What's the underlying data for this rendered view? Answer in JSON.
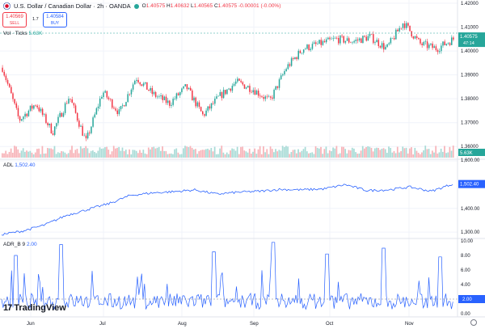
{
  "header": {
    "symbol_title": "U.S. Dollar / Canadian Dollar · 2h · OANDA",
    "ohlc": {
      "o_label": "O",
      "o_value": "1.40575",
      "h_label": "H",
      "h_value": "1.40632",
      "l_label": "L",
      "l_value": "1.40565",
      "c_label": "C",
      "c_value": "1.40575",
      "change": "-0.00001 (-0.00%)"
    },
    "sell_price": "1.40569",
    "sell_label": "SELL",
    "buy_price": "1.40584",
    "buy_label": "BUY",
    "spread": "1.7",
    "volume_label": "Vol · Ticks",
    "volume_value": "5.63K"
  },
  "price_axis": {
    "ticks": [
      "1.42000",
      "1.41000",
      "1.40000",
      "1.39000",
      "1.38000",
      "1.37000",
      "1.36000"
    ],
    "current_price": "1.40575",
    "countdown": "47:14",
    "volume_badge": "5.63K",
    "last_visible": "1,600.00"
  },
  "adl_panel": {
    "label": "ADL",
    "value": "1,502.40",
    "axis_ticks": [
      "1,600.00",
      "1,400.00",
      "1,300.00"
    ],
    "badge": "1,502.40"
  },
  "adr_panel": {
    "label": "ADR_B",
    "param": "9",
    "value": "2.00",
    "axis_ticks": [
      "10.00",
      "8.00",
      "6.00",
      "4.00",
      "0.00"
    ],
    "badge": "2.00"
  },
  "time_axis": {
    "labels": [
      "Jun",
      "Jul",
      "Aug",
      "Sep",
      "Oct",
      "Nov"
    ]
  },
  "branding": {
    "logo_text": "TradingView"
  },
  "colors": {
    "up": "#26a69a",
    "down": "#f23645",
    "line": "#2962ff",
    "grid": "#f0f3fa",
    "current_price": "#26a69a"
  },
  "chart_data": [
    {
      "type": "candlestick",
      "series_name": "USDCAD 2h",
      "x": [
        "Jun",
        "Jul",
        "Aug",
        "Sep",
        "Oct",
        "Nov"
      ],
      "close_path": [
        1.393,
        1.371,
        1.378,
        1.366,
        1.381,
        1.362,
        1.383,
        1.374,
        1.389,
        1.382,
        1.378,
        1.385,
        1.373,
        1.381,
        1.387,
        1.384,
        1.379,
        1.393,
        1.401,
        1.403,
        1.405,
        1.404,
        1.406,
        1.401,
        1.412,
        1.403,
        1.401,
        1.405
      ],
      "ylim": [
        1.355,
        1.42
      ],
      "grid": true
    },
    {
      "type": "area",
      "series_name": "Vol · Ticks",
      "last_value": "5.63K"
    },
    {
      "type": "line",
      "series_name": "ADL",
      "values": [
        1290,
        1305,
        1330,
        1370,
        1395,
        1420,
        1455,
        1465,
        1470,
        1478,
        1460,
        1468,
        1472,
        1480,
        1478,
        1482,
        1500,
        1475,
        1478,
        1490,
        1472,
        1503
      ],
      "ylim": [
        1280,
        1600
      ],
      "last_value": 1502.4
    },
    {
      "type": "line",
      "series_name": "ADR_B",
      "params": "9",
      "ylim": [
        0,
        10
      ],
      "last_value": 2.0
    }
  ]
}
